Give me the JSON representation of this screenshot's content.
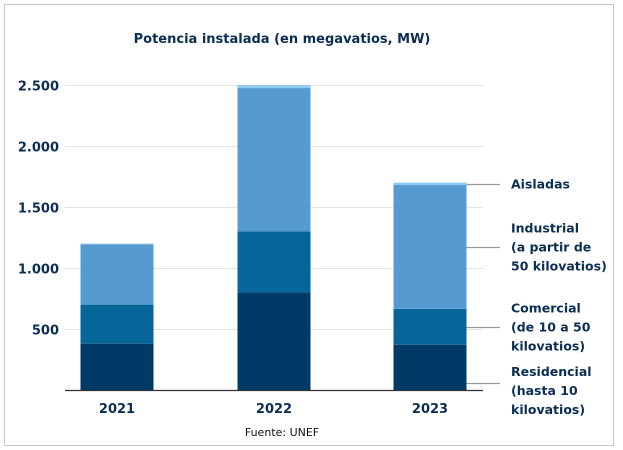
{
  "chart_data": {
    "type": "bar",
    "stacked": true,
    "title": "Potencia instalada (en megavatios, MW)",
    "xlabel": "",
    "ylabel": "",
    "source": "Fuente: UNEF",
    "categories": [
      "2021",
      "2022",
      "2023"
    ],
    "ylim": [
      0,
      2500
    ],
    "yticks": [
      500,
      1000,
      1500,
      2000,
      2500
    ],
    "ytick_labels": [
      "500",
      "1.000",
      "1.500",
      "2.000",
      "2.500"
    ],
    "grid": true,
    "legend_position": "right",
    "series": [
      {
        "name": "Residencial (hasta 10 kilovatios)",
        "lines": [
          "Residencial",
          "(hasta 10",
          "kilovatios)"
        ],
        "color": "#003a66",
        "values": [
          380,
          800,
          370
        ]
      },
      {
        "name": "Comercial (de 10 a 50 kilovatios)",
        "lines": [
          "Comercial",
          "(de 10 a 50",
          "kilovatios)"
        ],
        "color": "#076699",
        "values": [
          320,
          500,
          295
        ]
      },
      {
        "name": "Industrial (a partir de 50 kilovatios)",
        "lines": [
          "Industrial",
          "(a partir de",
          "50 kilovatios)"
        ],
        "color": "#559bd1",
        "values": [
          495,
          1175,
          1015
        ]
      },
      {
        "name": "Aisladas",
        "lines": [
          "Aisladas"
        ],
        "color": "#8fcaef",
        "values": [
          5,
          25,
          20
        ]
      }
    ]
  }
}
